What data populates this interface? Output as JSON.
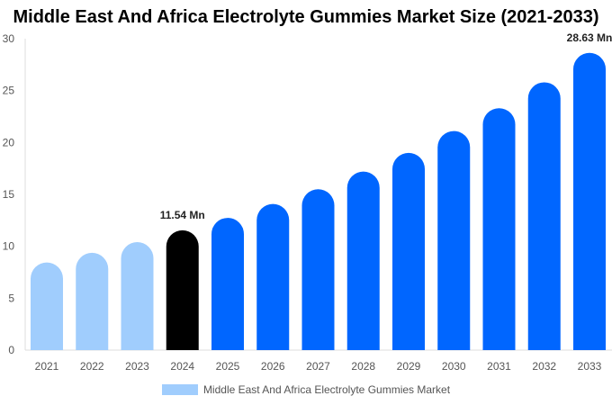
{
  "chart_data": {
    "type": "bar",
    "title": "Middle East And Africa Electrolyte Gummies Market Size (2021-2033)",
    "categories": [
      "2021",
      "2022",
      "2023",
      "2024",
      "2025",
      "2026",
      "2027",
      "2028",
      "2029",
      "2030",
      "2031",
      "2032",
      "2033"
    ],
    "series": [
      {
        "name": "Middle East And Africa Electrolyte Gummies Market",
        "values": [
          8.44,
          9.37,
          10.4,
          11.54,
          12.74,
          14.08,
          15.5,
          17.2,
          19.0,
          21.1,
          23.3,
          25.8,
          28.63
        ]
      }
    ],
    "colors": [
      "#a0cdfd",
      "#a0cdfd",
      "#a0cdfd",
      "#000000",
      "#0066ff",
      "#0066ff",
      "#0066ff",
      "#0066ff",
      "#0066ff",
      "#0066ff",
      "#0066ff",
      "#0066ff",
      "#0066ff"
    ],
    "data_labels": {
      "2024": "11.54 Mn",
      "2033": "28.63 Mn"
    },
    "ylim": [
      0,
      30
    ],
    "yticks": [
      "0",
      "5",
      "10",
      "15",
      "20",
      "25",
      "30"
    ],
    "grid": false,
    "legend_position": "bottom",
    "xlabel": "",
    "ylabel": ""
  }
}
